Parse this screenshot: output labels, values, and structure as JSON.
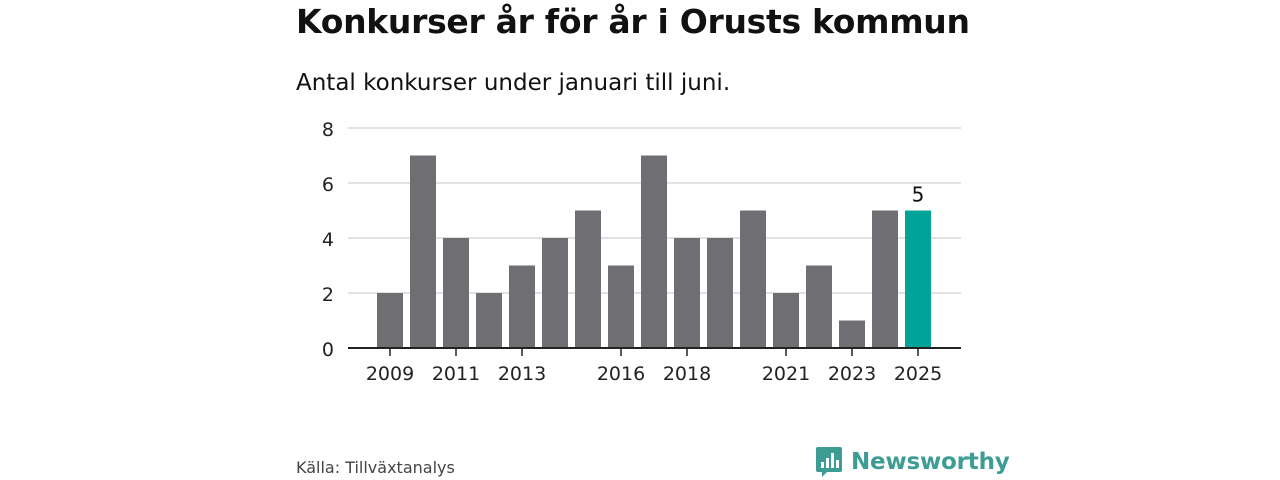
{
  "header": {
    "title": "Konkurser år för år i Orusts kommun",
    "subtitle": "Antal konkurser under januari till juni."
  },
  "footer": {
    "source": "Källa: Tillväxtanalys",
    "brand": "Newsworthy"
  },
  "colors": {
    "bar": "#6f6e73",
    "highlight": "#00a398",
    "grid": "#d9d9d9",
    "axis": "#222222",
    "brand": "#3d9d94"
  },
  "chart_data": {
    "type": "bar",
    "title": "Konkurser år för år i Orusts kommun",
    "subtitle": "Antal konkurser under januari till juni.",
    "xlabel": "",
    "ylabel": "",
    "ylim": [
      0,
      8
    ],
    "yticks": [
      0,
      2,
      4,
      6,
      8
    ],
    "grid": true,
    "categories": [
      "2009",
      "2010",
      "2011",
      "2012",
      "2013",
      "2014",
      "2015",
      "2016",
      "2017",
      "2018",
      "2019",
      "2020",
      "2021",
      "2022",
      "2023",
      "2024",
      "2025"
    ],
    "values": [
      2,
      7,
      4,
      2,
      3,
      4,
      5,
      3,
      7,
      4,
      4,
      5,
      2,
      3,
      1,
      5,
      5
    ],
    "xtick_labels": [
      "2009",
      "2011",
      "2013",
      "2016",
      "2018",
      "2021",
      "2023",
      "2025"
    ],
    "highlight": "2025",
    "data_labels": [
      {
        "category": "2025",
        "value": 5,
        "text": "5"
      }
    ]
  }
}
